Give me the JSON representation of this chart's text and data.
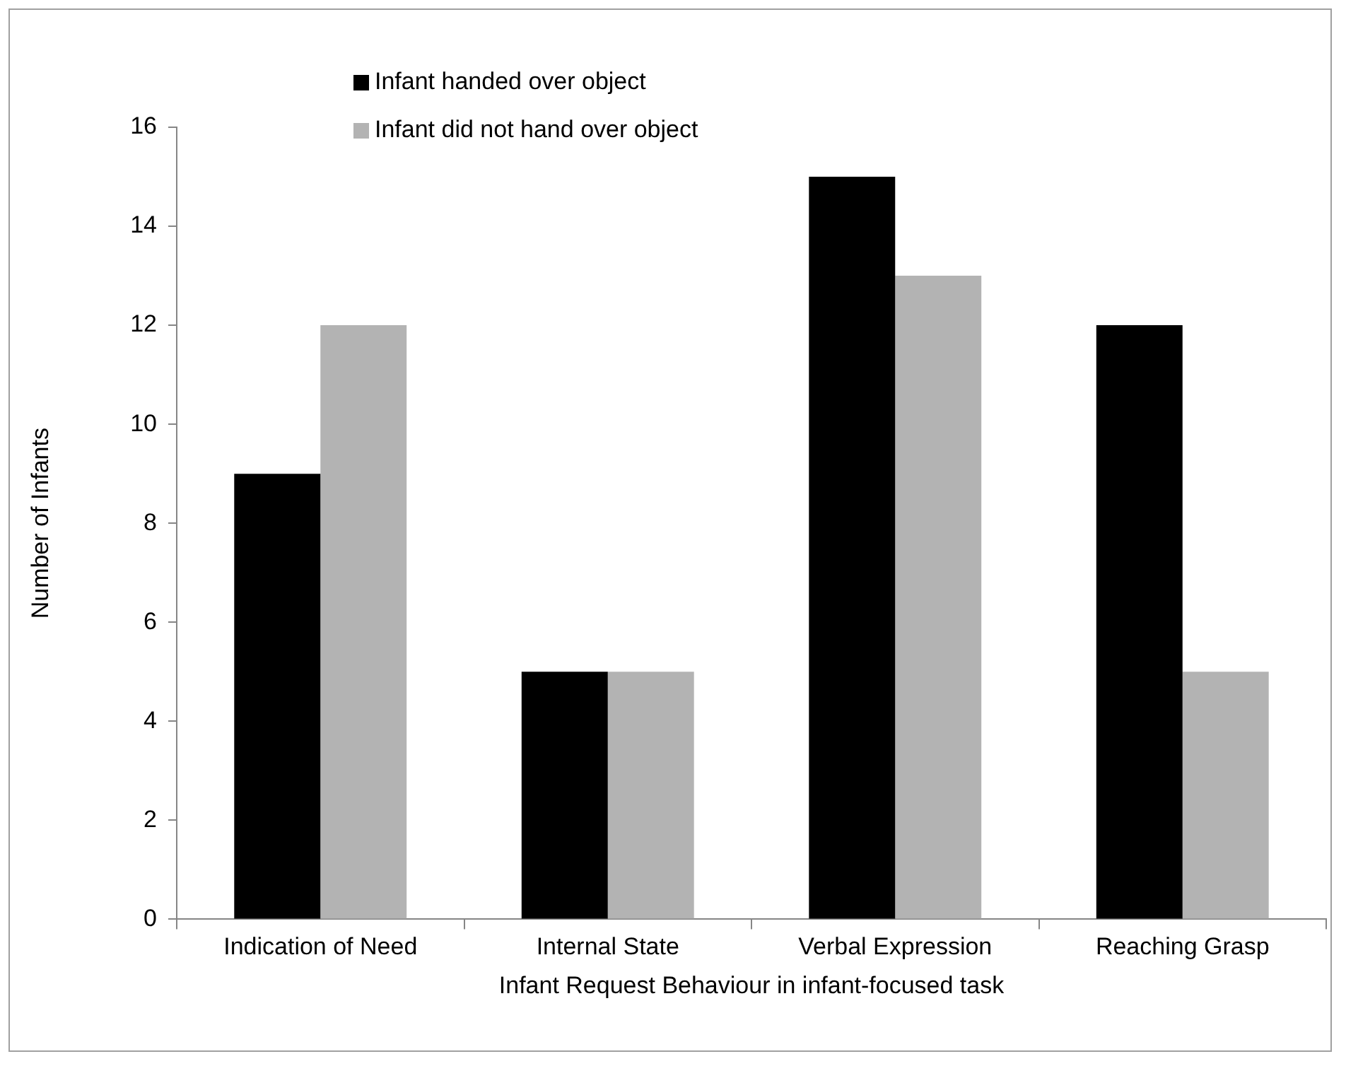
{
  "chart_data": {
    "type": "bar",
    "xlabel": "Infant Request Behaviour in infant-focused task",
    "ylabel": "Number of Infants",
    "categories": [
      "Indication of Need",
      "Internal State",
      "Verbal Expression",
      "Reaching Grasp"
    ],
    "series": [
      {
        "name": "Infant handed over object",
        "color": "#000000",
        "values": [
          9,
          5,
          15,
          12
        ]
      },
      {
        "name": "Infant did not hand over object",
        "color": "#b3b3b3",
        "values": [
          12,
          5,
          13,
          5
        ]
      }
    ],
    "ylim": [
      0,
      16
    ],
    "yticks": [
      0,
      2,
      4,
      6,
      8,
      10,
      12,
      14,
      16
    ],
    "grid": false,
    "legend": "top left"
  }
}
